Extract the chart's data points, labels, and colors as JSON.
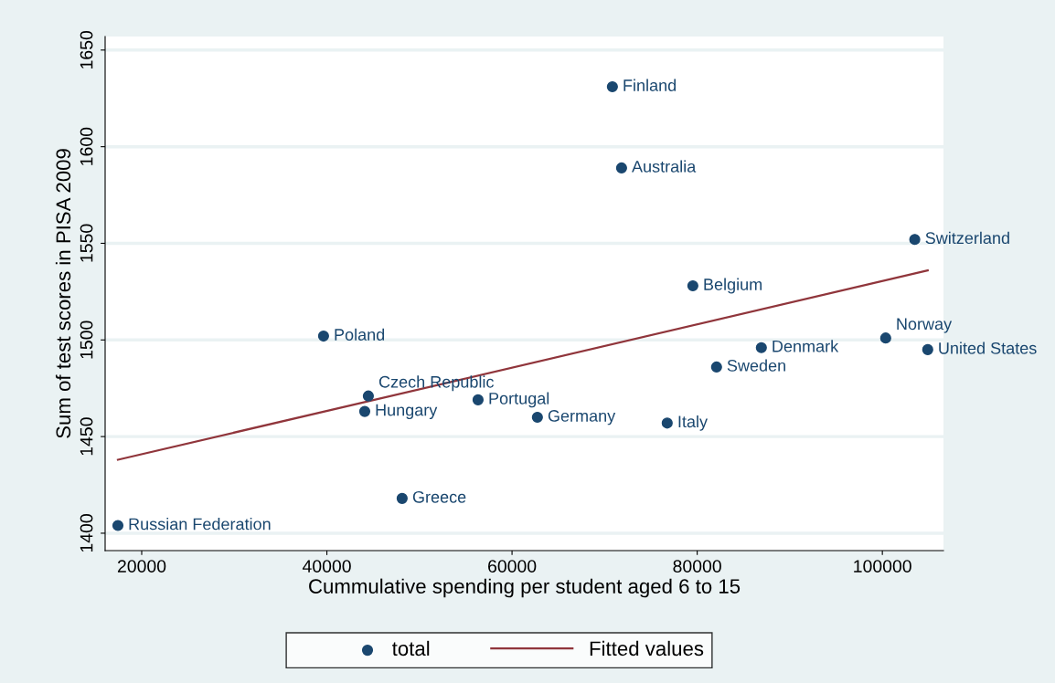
{
  "chart_data": {
    "type": "scatter",
    "xlabel": "Cummulative spending per student aged 6 to 15",
    "ylabel": "Sum of test scores in PISA 2009",
    "xlim": [
      16050,
      106600
    ],
    "ylim": [
      1391,
      1657
    ],
    "xticks": [
      20000,
      40000,
      60000,
      80000,
      100000
    ],
    "yticks": [
      1400,
      1450,
      1500,
      1550,
      1600,
      1650
    ],
    "grid": "y",
    "legend": "bottom",
    "series": [
      {
        "name": "total",
        "color": "#1a476f",
        "marker": "circle",
        "x": [
          70840,
          71830,
          103500,
          79530,
          39640,
          100360,
          104900,
          86930,
          82090,
          44480,
          56330,
          44090,
          62740,
          76760,
          48130,
          17430
        ],
        "values": [
          1631,
          1589,
          1552,
          1528,
          1502,
          1501,
          1495,
          1496,
          1486,
          1471,
          1469,
          1463,
          1460,
          1457,
          1418,
          1404
        ]
      },
      {
        "name": "Fitted values",
        "type": "line",
        "color": "#90353b",
        "x": [
          17430,
          104900
        ],
        "values": [
          1438,
          1536
        ]
      }
    ],
    "annotations": [
      {
        "text": "Finland",
        "x": 70840,
        "y": 1631
      },
      {
        "text": "Australia",
        "x": 71830,
        "y": 1589
      },
      {
        "text": "Switzerland",
        "x": 103500,
        "y": 1552
      },
      {
        "text": "Belgium",
        "x": 79530,
        "y": 1528
      },
      {
        "text": "Poland",
        "x": 39640,
        "y": 1502
      },
      {
        "text": "Norway",
        "x": 100360,
        "y": 1501
      },
      {
        "text": "United States",
        "x": 104900,
        "y": 1495
      },
      {
        "text": "Denmark",
        "x": 86930,
        "y": 1496
      },
      {
        "text": "Sweden",
        "x": 82090,
        "y": 1486
      },
      {
        "text": "Czech Republic",
        "x": 44480,
        "y": 1471
      },
      {
        "text": "Portugal",
        "x": 56330,
        "y": 1469
      },
      {
        "text": "Hungary",
        "x": 44090,
        "y": 1463
      },
      {
        "text": "Germany",
        "x": 62740,
        "y": 1460
      },
      {
        "text": "Italy",
        "x": 76760,
        "y": 1457
      },
      {
        "text": "Greece",
        "x": 48130,
        "y": 1418
      },
      {
        "text": "Russian Federation",
        "x": 17430,
        "y": 1404
      }
    ]
  }
}
